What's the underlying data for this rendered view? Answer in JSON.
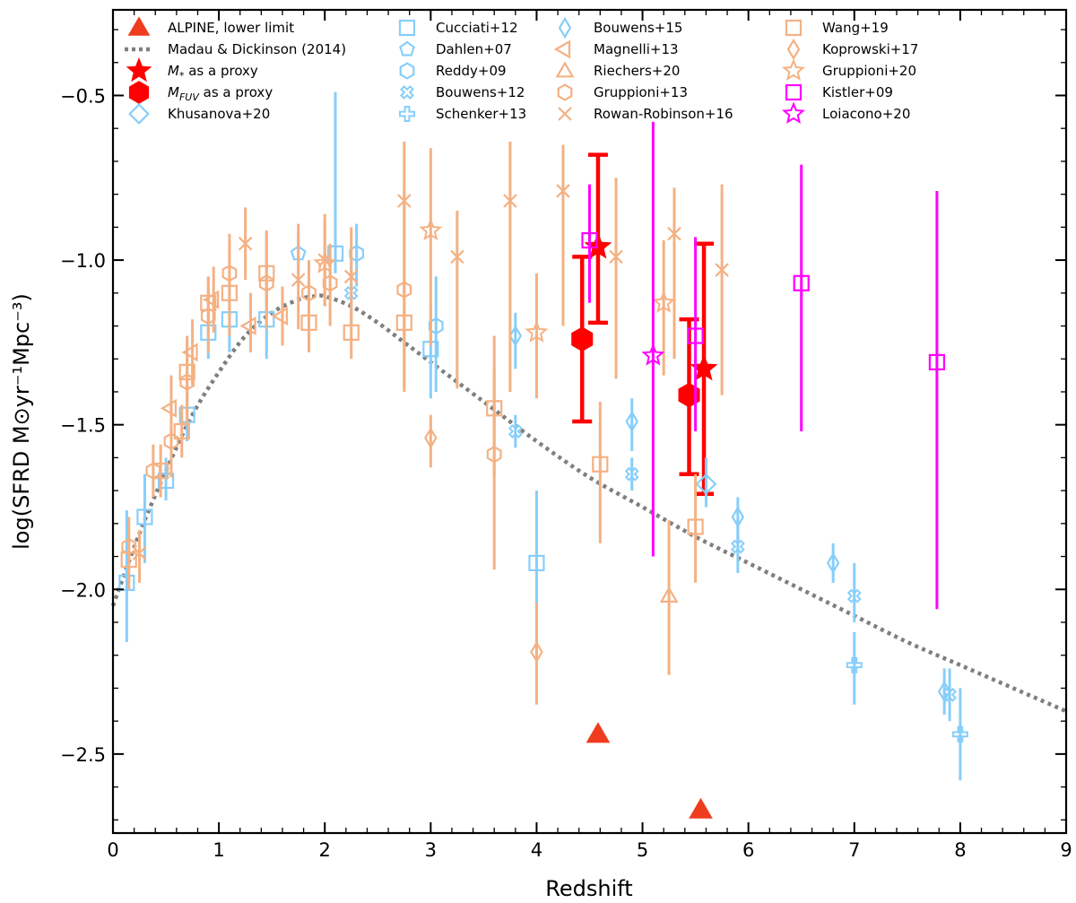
{
  "chart_data": {
    "type": "scatter",
    "xlabel": "Redshift",
    "ylabel": "log(SFRD M⊙yr⁻¹Mpc⁻³)",
    "xlim": [
      0,
      9
    ],
    "ylim": [
      -2.74,
      -0.24
    ],
    "xticks": [
      0,
      1,
      2,
      3,
      4,
      5,
      6,
      7,
      8,
      9
    ],
    "xtick_labels": [
      "0",
      "1",
      "2",
      "3",
      "4",
      "5",
      "6",
      "7",
      "8",
      "9"
    ],
    "yticks": [
      -2.5,
      -2.0,
      -1.5,
      -1.0,
      -0.5
    ],
    "ytick_labels": [
      "−2.5",
      "−2.0",
      "−1.5",
      "−1.0",
      "−0.5"
    ],
    "legend_position": "top",
    "colors": {
      "blue": "#87cefa",
      "orange": "#f4b183",
      "red": "#ff0000",
      "magenta": "#ff00ff",
      "alpine": "#f03c1e",
      "curve": "#7f7f7f"
    },
    "curve": {
      "name": "Madau & Dickinson (2014)",
      "x": [
        0,
        0.25,
        0.5,
        0.75,
        1.0,
        1.25,
        1.5,
        1.75,
        1.9,
        2.0,
        2.25,
        2.5,
        2.75,
        3.0,
        3.5,
        4.0,
        4.5,
        5.0,
        5.5,
        6.0,
        6.5,
        7.0,
        7.5,
        8.0,
        8.5,
        9.0
      ],
      "y": [
        -2.05,
        -1.83,
        -1.64,
        -1.47,
        -1.34,
        -1.23,
        -1.16,
        -1.12,
        -1.11,
        -1.11,
        -1.14,
        -1.19,
        -1.25,
        -1.31,
        -1.43,
        -1.55,
        -1.66,
        -1.75,
        -1.84,
        -1.92,
        -2.0,
        -2.08,
        -2.16,
        -2.23,
        -2.3,
        -2.37
      ]
    },
    "series": [
      {
        "name": "ALPINE, lower limit",
        "marker": "triangle",
        "color": "#f03c1e",
        "filled": true,
        "size": 12,
        "legend_col": 0,
        "legend_row": 0,
        "points": [
          [
            4.58,
            -2.44,
            -2.44,
            -2.44
          ],
          [
            5.55,
            -2.67,
            -2.67,
            -2.67
          ]
        ]
      },
      {
        "name": "Madau & Dickinson (2014)",
        "marker": "dotline",
        "color": "#7f7f7f",
        "legend_col": 0,
        "legend_row": 1,
        "points": []
      },
      {
        "name": "M* as a proxy",
        "label_main": "M",
        "label_sub": "*",
        "label_rest": " as a proxy",
        "marker": "star",
        "color": "#ff0000",
        "filled": true,
        "size": 12,
        "thick": true,
        "legend_col": 0,
        "legend_row": 2,
        "points": [
          [
            4.58,
            -0.96,
            -1.19,
            -0.68
          ],
          [
            5.58,
            -1.33,
            -1.71,
            -0.95
          ]
        ]
      },
      {
        "name": "MFUV as a proxy",
        "label_main": "M",
        "label_sub": "FUV",
        "label_rest": " as a proxy",
        "marker": "hexagon",
        "color": "#ff0000",
        "filled": true,
        "size": 12,
        "thick": true,
        "legend_col": 0,
        "legend_row": 3,
        "points": [
          [
            4.43,
            -1.24,
            -1.49,
            -0.99
          ],
          [
            5.44,
            -1.41,
            -1.65,
            -1.18
          ]
        ]
      },
      {
        "name": "Khusanova+20",
        "marker": "diamond",
        "color": "#87cefa",
        "size": 9,
        "legend_col": 0,
        "legend_row": 4,
        "points": [
          [
            5.6,
            -1.68,
            -1.75,
            -1.6
          ]
        ]
      },
      {
        "name": "Cucciati+12",
        "marker": "square",
        "color": "#87cefa",
        "size": 8,
        "legend_col": 1,
        "legend_row": 0,
        "points": [
          [
            0.13,
            -1.98,
            -2.16,
            -1.76
          ],
          [
            0.3,
            -1.78,
            -1.92,
            -1.65
          ],
          [
            0.5,
            -1.67,
            -1.73,
            -1.6
          ],
          [
            0.7,
            -1.47,
            -1.55,
            -1.38
          ],
          [
            0.9,
            -1.22,
            -1.3,
            -1.15
          ],
          [
            1.1,
            -1.18,
            -1.28,
            -1.07
          ],
          [
            1.45,
            -1.18,
            -1.3,
            -1.05
          ],
          [
            2.1,
            -0.98,
            -1.04,
            -0.49
          ],
          [
            3.0,
            -1.27,
            -1.42,
            -1.13
          ],
          [
            4.0,
            -1.92,
            -2.2,
            -1.7
          ]
        ]
      },
      {
        "name": "Dahlen+07",
        "marker": "pentagon",
        "color": "#87cefa",
        "size": 8,
        "legend_col": 1,
        "legend_row": 1,
        "points": [
          [
            1.75,
            -0.98,
            -1.04,
            -0.92
          ]
        ]
      },
      {
        "name": "Reddy+09",
        "marker": "hexagon",
        "color": "#87cefa",
        "size": 8,
        "legend_col": 1,
        "legend_row": 2,
        "points": [
          [
            2.3,
            -0.98,
            -1.08,
            -0.89
          ],
          [
            3.05,
            -1.2,
            -1.4,
            -1.05
          ]
        ]
      },
      {
        "name": "Bouwens+12",
        "marker": "xsquare",
        "color": "#87cefa",
        "size": 7,
        "legend_col": 1,
        "legend_row": 3,
        "points": [
          [
            2.25,
            -1.1,
            -1.2,
            -0.99
          ],
          [
            3.8,
            -1.52,
            -1.57,
            -1.47
          ],
          [
            4.9,
            -1.65,
            -1.7,
            -1.6
          ],
          [
            5.9,
            -1.87,
            -1.95,
            -1.8
          ],
          [
            7.0,
            -2.02,
            -2.1,
            -1.92
          ],
          [
            7.9,
            -2.32,
            -2.4,
            -2.24
          ]
        ]
      },
      {
        "name": "Schenker+13",
        "marker": "plus",
        "color": "#87cefa",
        "size": 8,
        "legend_col": 1,
        "legend_row": 4,
        "points": [
          [
            7.0,
            -2.23,
            -2.35,
            -2.13
          ],
          [
            8.0,
            -2.44,
            -2.58,
            -2.3
          ]
        ]
      },
      {
        "name": "Bouwens+15",
        "marker": "thin_diamond",
        "color": "#87cefa",
        "size": 10,
        "legend_col": 2,
        "legend_row": 0,
        "points": [
          [
            3.8,
            -1.23,
            -1.33,
            -1.16
          ],
          [
            4.9,
            -1.49,
            -1.58,
            -1.42
          ],
          [
            5.9,
            -1.78,
            -1.86,
            -1.72
          ],
          [
            6.8,
            -1.92,
            -1.98,
            -1.86
          ],
          [
            7.85,
            -2.31,
            -2.38,
            -2.24
          ]
        ]
      },
      {
        "name": "Magnelli+13",
        "marker": "triangle_left",
        "color": "#f4b183",
        "size": 9,
        "legend_col": 2,
        "legend_row": 1,
        "points": [
          [
            0.55,
            -1.45,
            -1.55,
            -1.35
          ],
          [
            0.75,
            -1.28,
            -1.38,
            -1.18
          ],
          [
            0.95,
            -1.12,
            -1.22,
            -1.02
          ],
          [
            1.3,
            -1.2,
            -1.28,
            -1.1
          ],
          [
            1.6,
            -1.17,
            -1.26,
            -1.08
          ]
        ]
      },
      {
        "name": "Riechers+20",
        "marker": "triangle",
        "color": "#f4b183",
        "size": 9,
        "legend_col": 2,
        "legend_row": 2,
        "points": [
          [
            5.25,
            -2.02,
            -2.26,
            -1.79
          ]
        ]
      },
      {
        "name": "Gruppioni+13",
        "marker": "hexagon",
        "color": "#f4b183",
        "size": 8,
        "legend_col": 2,
        "legend_row": 3,
        "points": [
          [
            0.15,
            -1.87,
            -1.98,
            -1.78
          ],
          [
            0.38,
            -1.64,
            -1.72,
            -1.56
          ],
          [
            0.55,
            -1.55,
            -1.66,
            -1.44
          ],
          [
            0.7,
            -1.37,
            -1.5,
            -1.25
          ],
          [
            0.9,
            -1.17,
            -1.28,
            -1.05
          ],
          [
            1.1,
            -1.04,
            -1.16,
            -0.92
          ],
          [
            1.45,
            -1.07,
            -1.21,
            -0.92
          ],
          [
            1.85,
            -1.1,
            -1.2,
            -1.0
          ],
          [
            2.05,
            -1.07,
            -1.2,
            -0.95
          ],
          [
            2.75,
            -1.09,
            -1.39,
            -0.79
          ],
          [
            3.6,
            -1.59,
            -1.94,
            -1.33
          ]
        ]
      },
      {
        "name": "Rowan-Robinson+16",
        "marker": "x",
        "color": "#f4b183",
        "size": 7,
        "legend_col": 2,
        "legend_row": 4,
        "points": [
          [
            0.25,
            -1.89,
            -1.98,
            -1.82
          ],
          [
            1.25,
            -0.95,
            -1.06,
            -0.84
          ],
          [
            1.75,
            -1.06,
            -1.21,
            -0.89
          ],
          [
            2.0,
            -1.0,
            -1.14,
            -0.86
          ],
          [
            2.25,
            -1.05,
            -1.18,
            -0.9
          ],
          [
            2.75,
            -0.82,
            -0.99,
            -0.64
          ],
          [
            3.25,
            -0.99,
            -1.39,
            -0.85
          ],
          [
            3.75,
            -0.82,
            -1.4,
            -0.64
          ],
          [
            4.25,
            -0.79,
            -1.2,
            -0.65
          ],
          [
            4.75,
            -0.99,
            -1.36,
            -0.75
          ],
          [
            5.3,
            -0.92,
            -1.3,
            -0.78
          ],
          [
            5.75,
            -1.03,
            -1.41,
            -0.77
          ]
        ]
      },
      {
        "name": "Wang+19",
        "marker": "square",
        "color": "#f4b183",
        "size": 8,
        "legend_col": 3,
        "legend_row": 0,
        "points": [
          [
            0.15,
            -1.91,
            -2.0,
            -1.81
          ],
          [
            0.45,
            -1.64,
            -1.72,
            -1.56
          ],
          [
            0.65,
            -1.52,
            -1.6,
            -1.44
          ],
          [
            0.7,
            -1.34,
            -1.47,
            -1.23
          ],
          [
            0.9,
            -1.13,
            -1.22,
            -1.05
          ],
          [
            1.1,
            -1.1,
            -1.23,
            -0.98
          ],
          [
            1.45,
            -1.04,
            -1.16,
            -0.91
          ],
          [
            1.85,
            -1.19,
            -1.28,
            -1.1
          ],
          [
            2.25,
            -1.22,
            -1.3,
            -1.15
          ],
          [
            2.75,
            -1.19,
            -1.4,
            -0.99
          ],
          [
            3.6,
            -1.45,
            -1.66,
            -1.23
          ],
          [
            4.6,
            -1.62,
            -1.86,
            -1.43
          ],
          [
            5.5,
            -1.81,
            -1.98,
            -1.65
          ]
        ]
      },
      {
        "name": "Koprowski+17",
        "marker": "thin_diamond",
        "color": "#f4b183",
        "size": 10,
        "legend_col": 3,
        "legend_row": 1,
        "points": [
          [
            3.0,
            -1.54,
            -1.63,
            -1.47
          ],
          [
            4.0,
            -2.19,
            -2.35,
            -2.04
          ]
        ]
      },
      {
        "name": "Gruppioni+20",
        "marker": "star_open",
        "color": "#f4b183",
        "size": 11,
        "legend_col": 3,
        "legend_row": 2,
        "points": [
          [
            2.0,
            -1.01,
            -1.14,
            -0.88
          ],
          [
            3.0,
            -0.91,
            -1.26,
            -0.66
          ],
          [
            4.0,
            -1.22,
            -1.42,
            -1.04
          ],
          [
            5.2,
            -1.13,
            -1.35,
            -0.94
          ]
        ]
      },
      {
        "name": "Kistler+09",
        "marker": "square",
        "color": "#ff00ff",
        "size": 8,
        "legend_col": 3,
        "legend_row": 3,
        "points": [
          [
            4.5,
            -0.94,
            -1.13,
            -0.77
          ],
          [
            5.5,
            -1.23,
            -1.52,
            -0.93
          ],
          [
            6.5,
            -1.07,
            -1.52,
            -0.71
          ],
          [
            7.78,
            -1.31,
            -2.06,
            -0.79
          ]
        ]
      },
      {
        "name": "Loiacono+20",
        "marker": "star_open",
        "color": "#ff00ff",
        "size": 11,
        "legend_col": 3,
        "legend_row": 4,
        "points": [
          [
            5.1,
            -1.29,
            -1.9,
            -0.58
          ]
        ]
      }
    ]
  }
}
